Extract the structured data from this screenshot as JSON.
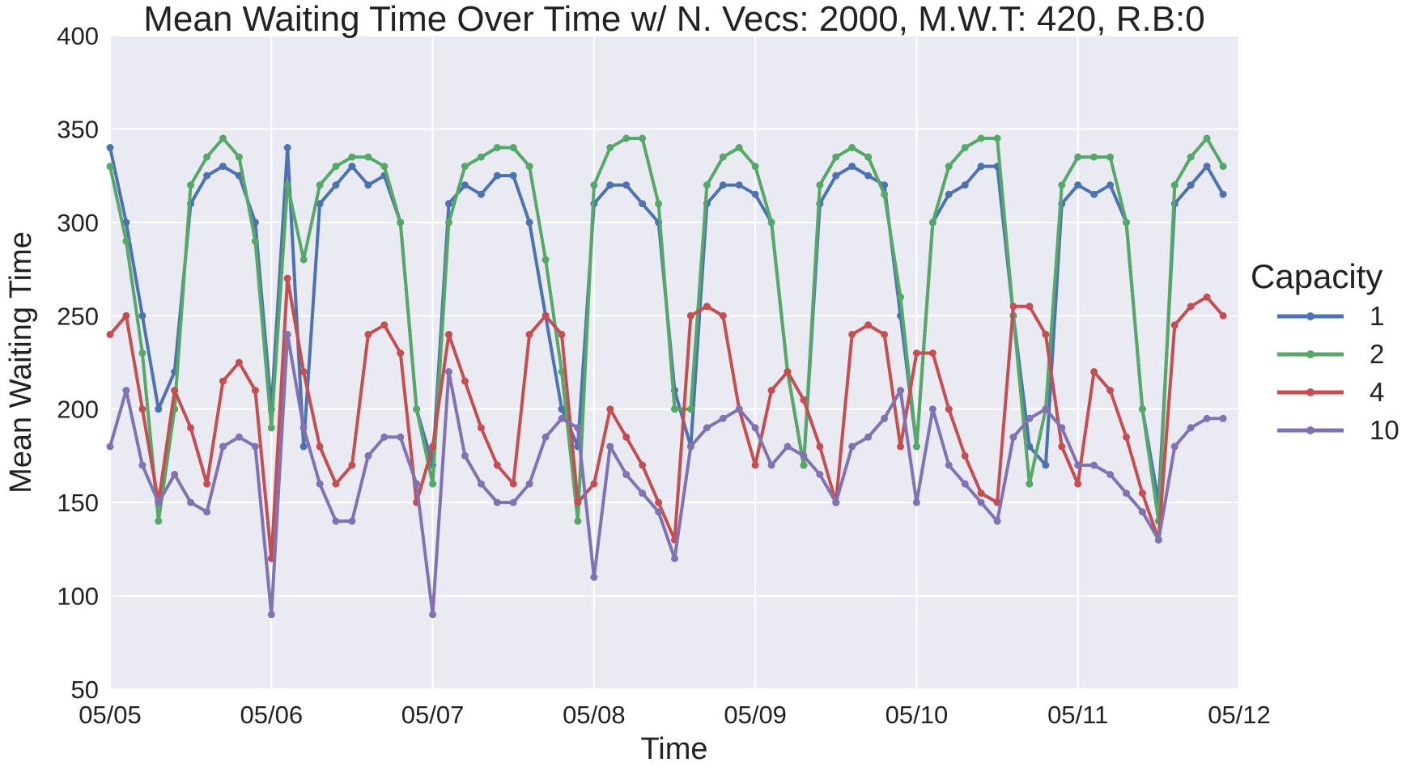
{
  "chart_data": {
    "type": "line",
    "title": "Mean Waiting Time Over Time w/ N. Vecs: 2000, M.W.T: 420, R.B:0",
    "xlabel": "Time",
    "ylabel": "Mean Waiting Time",
    "x_ticks": [
      "05/05",
      "05/06",
      "05/07",
      "05/08",
      "05/09",
      "05/10",
      "05/11",
      "05/12"
    ],
    "xlim_days": [
      0,
      7
    ],
    "ylim": [
      50,
      400
    ],
    "y_ticks": [
      50,
      100,
      150,
      200,
      250,
      300,
      350,
      400
    ],
    "grid": true,
    "legend_title": "Capacity",
    "legend_position": "right",
    "background": "#EAEAF2",
    "series": [
      {
        "name": "1",
        "color": "#4C72B0",
        "x": [
          0,
          0.1,
          0.2,
          0.3,
          0.4,
          0.5,
          0.6,
          0.7,
          0.8,
          0.9,
          1.0,
          1.1,
          1.2,
          1.3,
          1.4,
          1.5,
          1.6,
          1.7,
          1.8,
          1.9,
          2.0,
          2.1,
          2.2,
          2.3,
          2.4,
          2.5,
          2.6,
          2.7,
          2.8,
          2.9,
          3.0,
          3.1,
          3.2,
          3.3,
          3.4,
          3.5,
          3.6,
          3.7,
          3.8,
          3.9,
          4.0,
          4.1,
          4.2,
          4.3,
          4.4,
          4.5,
          4.6,
          4.7,
          4.8,
          4.9,
          5.0,
          5.1,
          5.2,
          5.3,
          5.4,
          5.5,
          5.6,
          5.7,
          5.8,
          5.9,
          6.0,
          6.1,
          6.2,
          6.3,
          6.4,
          6.5,
          6.6,
          6.7,
          6.8,
          6.9
        ],
        "values": [
          340,
          300,
          250,
          200,
          220,
          310,
          325,
          330,
          325,
          300,
          200,
          340,
          180,
          310,
          320,
          330,
          320,
          325,
          300,
          200,
          170,
          310,
          320,
          315,
          325,
          325,
          300,
          250,
          200,
          180,
          310,
          320,
          320,
          310,
          300,
          210,
          180,
          310,
          320,
          320,
          315,
          300,
          220,
          170,
          310,
          325,
          330,
          325,
          320,
          250,
          180,
          300,
          315,
          320,
          330,
          330,
          250,
          180,
          170,
          310,
          320,
          315,
          320,
          300,
          200,
          150,
          310,
          320,
          330,
          315
        ]
      },
      {
        "name": "2",
        "color": "#55A868",
        "x": [
          0,
          0.1,
          0.2,
          0.3,
          0.4,
          0.5,
          0.6,
          0.7,
          0.8,
          0.9,
          1.0,
          1.1,
          1.2,
          1.3,
          1.4,
          1.5,
          1.6,
          1.7,
          1.8,
          1.9,
          2.0,
          2.1,
          2.2,
          2.3,
          2.4,
          2.5,
          2.6,
          2.7,
          2.8,
          2.9,
          3.0,
          3.1,
          3.2,
          3.3,
          3.4,
          3.5,
          3.6,
          3.7,
          3.8,
          3.9,
          4.0,
          4.1,
          4.2,
          4.3,
          4.4,
          4.5,
          4.6,
          4.7,
          4.8,
          4.9,
          5.0,
          5.1,
          5.2,
          5.3,
          5.4,
          5.5,
          5.6,
          5.7,
          5.8,
          5.9,
          6.0,
          6.1,
          6.2,
          6.3,
          6.4,
          6.5,
          6.6,
          6.7,
          6.8,
          6.9
        ],
        "values": [
          330,
          290,
          230,
          140,
          200,
          320,
          335,
          345,
          335,
          290,
          190,
          320,
          280,
          320,
          330,
          335,
          335,
          330,
          300,
          200,
          160,
          300,
          330,
          335,
          340,
          340,
          330,
          280,
          220,
          140,
          320,
          340,
          345,
          345,
          310,
          200,
          200,
          320,
          335,
          340,
          330,
          300,
          220,
          170,
          320,
          335,
          340,
          335,
          315,
          260,
          180,
          300,
          330,
          340,
          345,
          345,
          250,
          160,
          200,
          320,
          335,
          335,
          335,
          300,
          200,
          140,
          320,
          335,
          345,
          330
        ]
      },
      {
        "name": "4",
        "color": "#C44E52",
        "x": [
          0,
          0.1,
          0.2,
          0.3,
          0.4,
          0.5,
          0.6,
          0.7,
          0.8,
          0.9,
          1.0,
          1.1,
          1.2,
          1.3,
          1.4,
          1.5,
          1.6,
          1.7,
          1.8,
          1.9,
          2.0,
          2.1,
          2.2,
          2.3,
          2.4,
          2.5,
          2.6,
          2.7,
          2.8,
          2.9,
          3.0,
          3.1,
          3.2,
          3.3,
          3.4,
          3.5,
          3.6,
          3.7,
          3.8,
          3.9,
          4.0,
          4.1,
          4.2,
          4.3,
          4.4,
          4.5,
          4.6,
          4.7,
          4.8,
          4.9,
          5.0,
          5.1,
          5.2,
          5.3,
          5.4,
          5.5,
          5.6,
          5.7,
          5.8,
          5.9,
          6.0,
          6.1,
          6.2,
          6.3,
          6.4,
          6.5,
          6.6,
          6.7,
          6.8,
          6.9
        ],
        "values": [
          240,
          250,
          200,
          150,
          210,
          190,
          160,
          215,
          225,
          210,
          120,
          270,
          220,
          180,
          160,
          170,
          240,
          245,
          230,
          150,
          180,
          240,
          215,
          190,
          170,
          160,
          240,
          250,
          240,
          150,
          160,
          200,
          185,
          170,
          150,
          130,
          250,
          255,
          250,
          200,
          170,
          210,
          220,
          205,
          180,
          150,
          240,
          245,
          240,
          180,
          230,
          230,
          200,
          175,
          155,
          150,
          255,
          255,
          240,
          180,
          160,
          220,
          210,
          185,
          155,
          130,
          245,
          255,
          260,
          250
        ]
      },
      {
        "name": "10",
        "color": "#8172B2",
        "x": [
          0,
          0.1,
          0.2,
          0.3,
          0.4,
          0.5,
          0.6,
          0.7,
          0.8,
          0.9,
          1.0,
          1.1,
          1.2,
          1.3,
          1.4,
          1.5,
          1.6,
          1.7,
          1.8,
          1.9,
          2.0,
          2.1,
          2.2,
          2.3,
          2.4,
          2.5,
          2.6,
          2.7,
          2.8,
          2.9,
          3.0,
          3.1,
          3.2,
          3.3,
          3.4,
          3.5,
          3.6,
          3.7,
          3.8,
          3.9,
          4.0,
          4.1,
          4.2,
          4.3,
          4.4,
          4.5,
          4.6,
          4.7,
          4.8,
          4.9,
          5.0,
          5.1,
          5.2,
          5.3,
          5.4,
          5.5,
          5.6,
          5.7,
          5.8,
          5.9,
          6.0,
          6.1,
          6.2,
          6.3,
          6.4,
          6.5,
          6.6,
          6.7,
          6.8,
          6.9
        ],
        "values": [
          180,
          210,
          170,
          150,
          165,
          150,
          145,
          180,
          185,
          180,
          90,
          240,
          190,
          160,
          140,
          140,
          175,
          185,
          185,
          160,
          90,
          220,
          175,
          160,
          150,
          150,
          160,
          185,
          195,
          190,
          110,
          180,
          165,
          155,
          145,
          120,
          180,
          190,
          195,
          200,
          190,
          170,
          180,
          175,
          165,
          150,
          180,
          185,
          195,
          210,
          150,
          200,
          170,
          160,
          150,
          140,
          185,
          195,
          200,
          190,
          170,
          170,
          165,
          155,
          145,
          130,
          180,
          190,
          195,
          195
        ]
      }
    ]
  }
}
